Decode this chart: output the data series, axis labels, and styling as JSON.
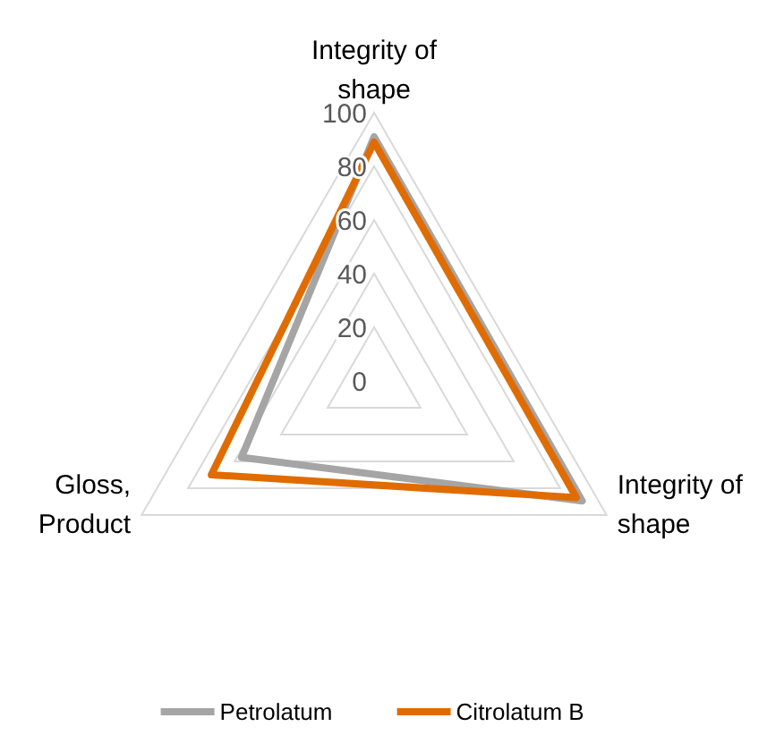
{
  "chart_data": {
    "type": "radar",
    "categories": [
      "Integrity of shape",
      "Integrity of shape",
      "Gloss, Product"
    ],
    "series": [
      {
        "name": "Petrolatum",
        "color": "#a5a5a5",
        "values": [
          91,
          89.5,
          57
        ]
      },
      {
        "name": "Citrolatum B",
        "color": "#e06c00",
        "values": [
          89,
          87,
          70
        ]
      }
    ],
    "ylim": [
      0,
      100
    ],
    "yticks": [
      0,
      20,
      40,
      60,
      80,
      100
    ],
    "grid": true,
    "legend": "bottom"
  }
}
